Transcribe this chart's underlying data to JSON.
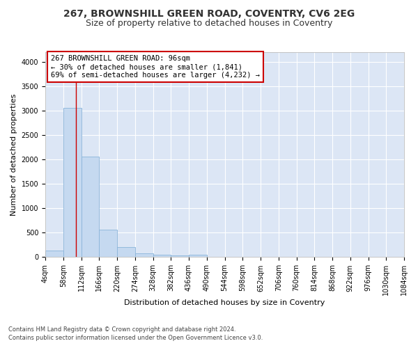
{
  "title1": "267, BROWNSHILL GREEN ROAD, COVENTRY, CV6 2EG",
  "title2": "Size of property relative to detached houses in Coventry",
  "xlabel": "Distribution of detached houses by size in Coventry",
  "ylabel": "Number of detached properties",
  "footnote1": "Contains HM Land Registry data © Crown copyright and database right 2024.",
  "footnote2": "Contains public sector information licensed under the Open Government Licence v3.0.",
  "annotation_line1": "267 BROWNSHILL GREEN ROAD: 96sqm",
  "annotation_line2": "← 30% of detached houses are smaller (1,841)",
  "annotation_line3": "69% of semi-detached houses are larger (4,232) →",
  "bar_color": "#c5d9f0",
  "bar_edge_color": "#8ab4d9",
  "property_line_color": "#cc0000",
  "annotation_box_edge_color": "#cc0000",
  "annotation_box_face_color": "#ffffff",
  "fig_facecolor": "#ffffff",
  "plot_bg_color": "#dce6f5",
  "grid_color": "#ffffff",
  "xlim_min": 4,
  "xlim_max": 1084,
  "ylim_min": 0,
  "ylim_max": 4200,
  "bin_edges": [
    4,
    58,
    112,
    166,
    220,
    274,
    328,
    382,
    436,
    490,
    544,
    598,
    652,
    706,
    760,
    814,
    868,
    922,
    976,
    1030,
    1084
  ],
  "bar_heights": [
    140,
    3060,
    2060,
    560,
    200,
    85,
    55,
    40,
    55,
    0,
    0,
    0,
    0,
    0,
    0,
    0,
    0,
    0,
    0,
    0
  ],
  "property_size": 96,
  "tick_labels": [
    "4sqm",
    "58sqm",
    "112sqm",
    "166sqm",
    "220sqm",
    "274sqm",
    "328sqm",
    "382sqm",
    "436sqm",
    "490sqm",
    "544sqm",
    "598sqm",
    "652sqm",
    "706sqm",
    "760sqm",
    "814sqm",
    "868sqm",
    "922sqm",
    "976sqm",
    "1030sqm",
    "1084sqm"
  ],
  "yticks": [
    0,
    500,
    1000,
    1500,
    2000,
    2500,
    3000,
    3500,
    4000
  ],
  "title1_fontsize": 10,
  "title2_fontsize": 9,
  "axis_label_fontsize": 8,
  "tick_fontsize": 7,
  "annotation_fontsize": 7.5,
  "footnote_fontsize": 6
}
